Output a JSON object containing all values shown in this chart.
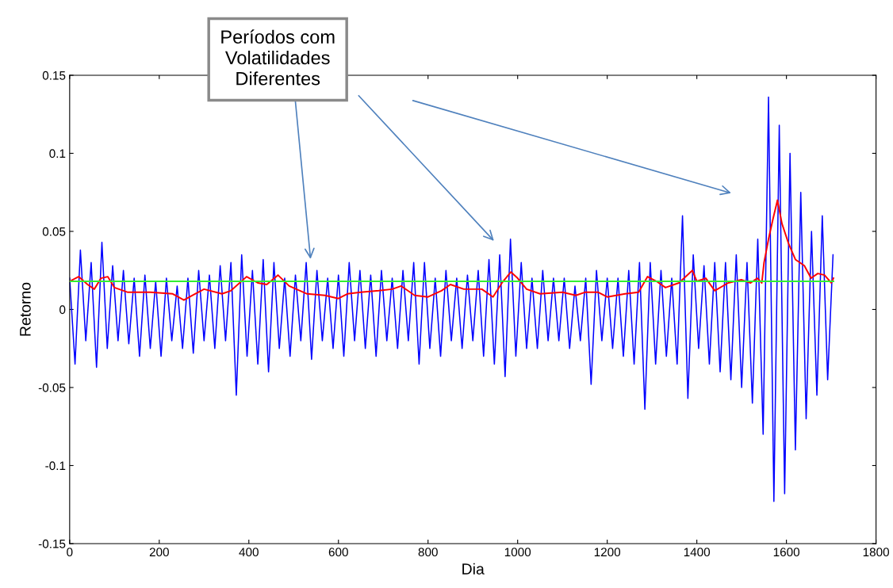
{
  "chart_data": {
    "type": "line",
    "xlabel": "Dia",
    "ylabel": "Retorno",
    "xlim": [
      0,
      1800
    ],
    "xticks": [
      0,
      200,
      400,
      600,
      800,
      1000,
      1200,
      1400,
      1600,
      1800
    ],
    "ylim": [
      -0.15,
      0.15
    ],
    "yticks": [
      -0.15,
      -0.1,
      -0.05,
      0,
      0.05,
      0.1,
      0.15
    ],
    "grid": false,
    "annotations": [
      "Períodos com\nVolatilidades\nDiferentes"
    ],
    "series": [
      {
        "color": "#0000ff",
        "x": [
          0,
          12,
          24,
          36,
          48,
          60,
          72,
          84,
          96,
          108,
          120,
          132,
          144,
          156,
          168,
          180,
          192,
          204,
          216,
          228,
          240,
          252,
          264,
          276,
          288,
          300,
          312,
          324,
          336,
          348,
          360,
          372,
          384,
          396,
          408,
          420,
          432,
          444,
          456,
          468,
          480,
          492,
          504,
          516,
          528,
          540,
          552,
          564,
          576,
          588,
          600,
          612,
          624,
          636,
          648,
          660,
          672,
          684,
          696,
          708,
          720,
          732,
          744,
          756,
          768,
          780,
          792,
          804,
          816,
          828,
          840,
          852,
          864,
          876,
          888,
          900,
          912,
          924,
          936,
          948,
          960,
          972,
          984,
          996,
          1008,
          1020,
          1032,
          1044,
          1056,
          1068,
          1080,
          1092,
          1104,
          1116,
          1128,
          1140,
          1152,
          1164,
          1176,
          1188,
          1200,
          1212,
          1224,
          1236,
          1248,
          1260,
          1272,
          1284,
          1296,
          1308,
          1320,
          1332,
          1344,
          1356,
          1368,
          1380,
          1392,
          1404,
          1416,
          1428,
          1440,
          1452,
          1464,
          1476,
          1488,
          1500,
          1512,
          1524,
          1536,
          1548,
          1560,
          1572,
          1584,
          1596,
          1608,
          1620,
          1632,
          1644,
          1656,
          1668,
          1680,
          1692,
          1704
        ],
        "values": [
          0.02,
          -0.035,
          0.038,
          -0.02,
          0.03,
          -0.037,
          0.043,
          -0.025,
          0.028,
          -0.02,
          0.025,
          -0.022,
          0.02,
          -0.03,
          0.022,
          -0.025,
          0.018,
          -0.03,
          0.02,
          -0.02,
          0.015,
          -0.025,
          0.02,
          -0.028,
          0.025,
          -0.02,
          0.022,
          -0.025,
          0.028,
          -0.02,
          0.03,
          -0.055,
          0.035,
          -0.03,
          0.025,
          -0.035,
          0.032,
          -0.04,
          0.03,
          -0.025,
          0.02,
          -0.03,
          0.022,
          -0.02,
          0.03,
          -0.032,
          0.025,
          -0.02,
          0.02,
          -0.025,
          0.022,
          -0.03,
          0.03,
          -0.02,
          0.025,
          -0.025,
          0.022,
          -0.03,
          0.025,
          -0.02,
          0.02,
          -0.025,
          0.025,
          -0.02,
          0.03,
          -0.035,
          0.03,
          -0.025,
          0.02,
          -0.03,
          0.025,
          -0.02,
          0.02,
          -0.025,
          0.022,
          -0.02,
          0.025,
          -0.03,
          0.032,
          -0.035,
          0.035,
          -0.043,
          0.045,
          -0.03,
          0.03,
          -0.025,
          0.02,
          -0.025,
          0.025,
          -0.02,
          0.02,
          -0.02,
          0.02,
          -0.025,
          0.015,
          -0.02,
          0.02,
          -0.048,
          0.025,
          -0.02,
          0.02,
          -0.025,
          0.02,
          -0.03,
          0.025,
          -0.035,
          0.03,
          -0.064,
          0.03,
          -0.035,
          0.025,
          -0.03,
          0.02,
          -0.035,
          0.06,
          -0.057,
          0.035,
          -0.025,
          0.028,
          -0.035,
          0.03,
          -0.04,
          0.03,
          -0.045,
          0.035,
          -0.05,
          0.03,
          -0.06,
          0.045,
          -0.08,
          0.136,
          -0.123,
          0.118,
          -0.118,
          0.1,
          -0.09,
          0.075,
          -0.07,
          0.05,
          -0.055,
          0.06,
          -0.045,
          0.035
        ]
      },
      {
        "color": "#ff0000",
        "x": [
          0,
          20,
          40,
          55,
          70,
          85,
          100,
          130,
          180,
          230,
          255,
          280,
          300,
          340,
          360,
          395,
          420,
          440,
          465,
          490,
          530,
          570,
          600,
          620,
          650,
          690,
          720,
          740,
          770,
          800,
          830,
          850,
          880,
          920,
          945,
          965,
          985,
          1000,
          1020,
          1050,
          1100,
          1130,
          1150,
          1180,
          1200,
          1240,
          1270,
          1290,
          1310,
          1330,
          1360,
          1390,
          1400,
          1420,
          1440,
          1470,
          1500,
          1520,
          1535,
          1545,
          1550,
          1560,
          1570,
          1580,
          1590,
          1605,
          1620,
          1640,
          1655,
          1670,
          1685,
          1700,
          1705
        ],
        "values": [
          0.018,
          0.021,
          0.016,
          0.013,
          0.02,
          0.021,
          0.014,
          0.011,
          0.011,
          0.01,
          0.006,
          0.01,
          0.013,
          0.01,
          0.012,
          0.021,
          0.017,
          0.016,
          0.022,
          0.015,
          0.01,
          0.009,
          0.007,
          0.01,
          0.011,
          0.012,
          0.013,
          0.015,
          0.009,
          0.008,
          0.012,
          0.016,
          0.013,
          0.013,
          0.008,
          0.017,
          0.024,
          0.02,
          0.013,
          0.01,
          0.011,
          0.009,
          0.011,
          0.011,
          0.008,
          0.01,
          0.011,
          0.021,
          0.018,
          0.014,
          0.017,
          0.025,
          0.018,
          0.02,
          0.012,
          0.017,
          0.019,
          0.017,
          0.02,
          0.017,
          0.03,
          0.045,
          0.058,
          0.07,
          0.055,
          0.042,
          0.032,
          0.028,
          0.02,
          0.023,
          0.022,
          0.017,
          0.02
        ]
      },
      {
        "color": "#33ee33",
        "x": [
          0,
          1705
        ],
        "values": [
          0.018,
          0.018
        ]
      }
    ]
  }
}
